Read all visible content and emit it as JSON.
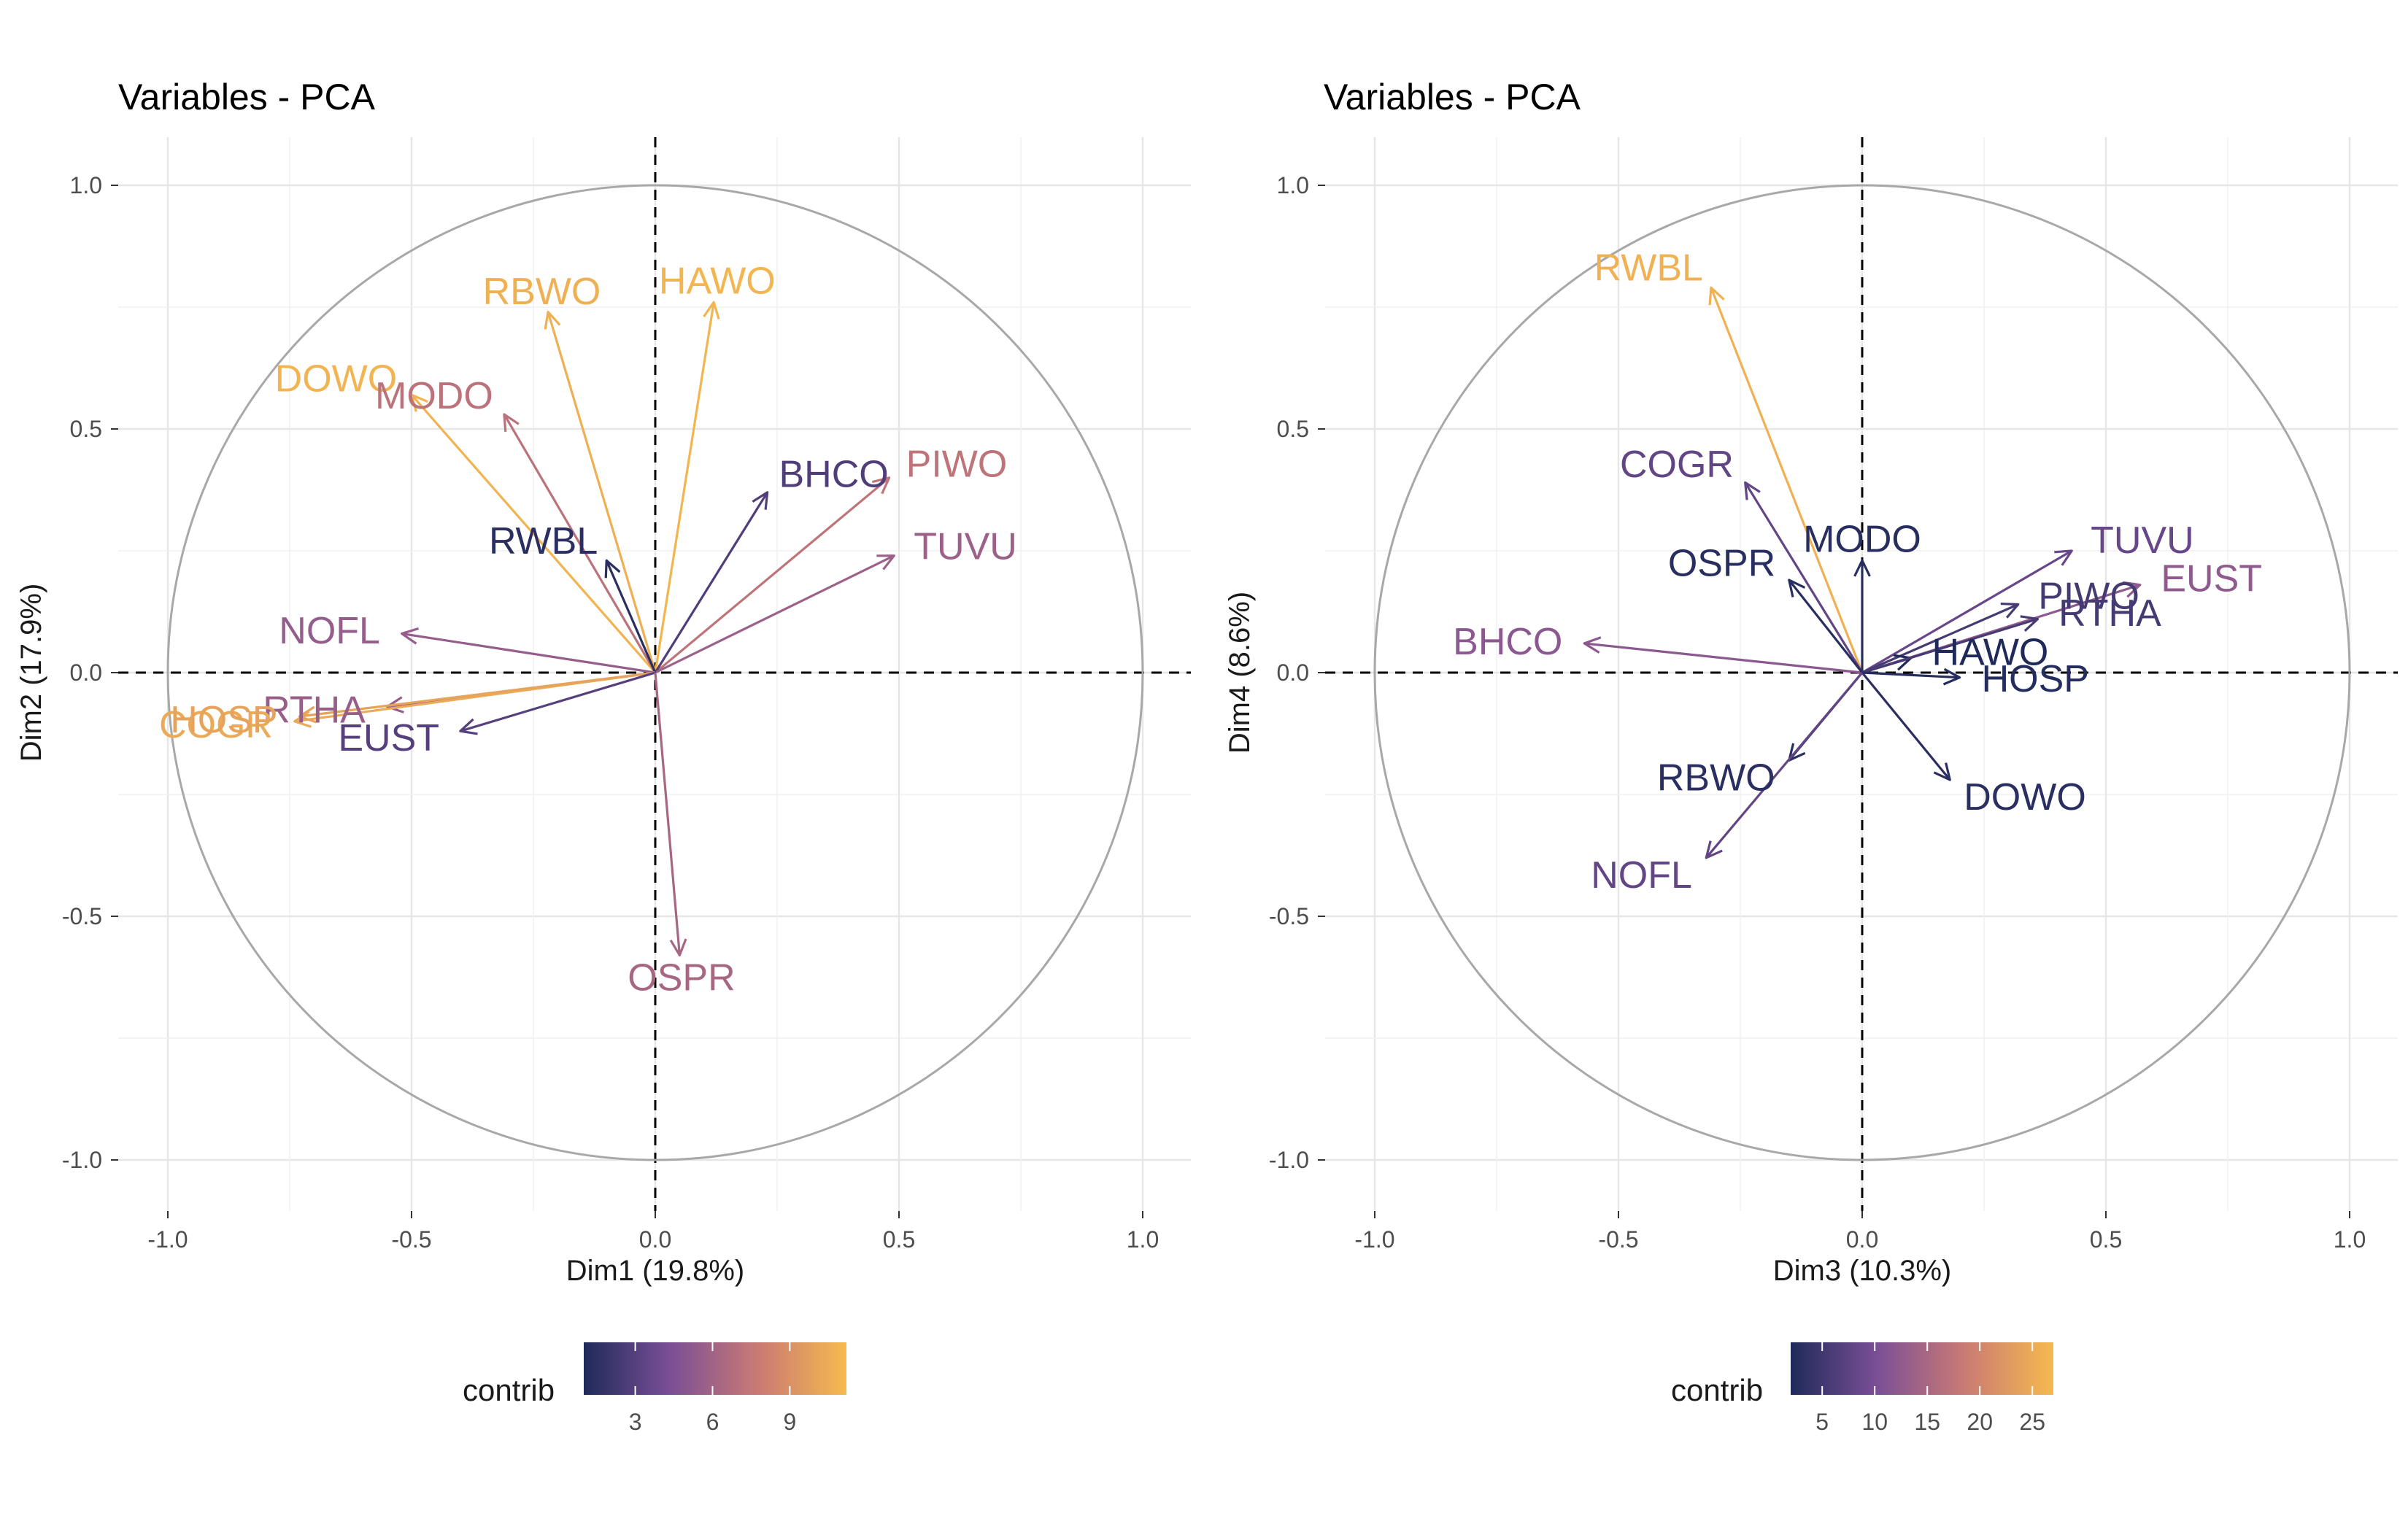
{
  "chart_data": [
    {
      "type": "scatter",
      "title": "Variables - PCA",
      "xlabel": "Dim1 (19.8%)",
      "ylabel": "Dim2 (17.9%)",
      "xlim": [
        -1.0,
        1.0
      ],
      "ylim": [
        -1.0,
        1.0
      ],
      "x_ticks": [
        "-1.0",
        "-0.5",
        "0.0",
        "0.5",
        "1.0"
      ],
      "y_ticks": [
        "1.0",
        "0.5",
        "0.0",
        "-0.5",
        "-1.0"
      ],
      "grid": true,
      "correlation_circle": true,
      "legend": {
        "title": "contrib",
        "placement": "bottom",
        "range": [
          1.0,
          11.2
        ],
        "ticks": [
          3,
          6,
          9
        ],
        "tick_labels": [
          "3",
          "6",
          "9"
        ]
      },
      "points": [
        {
          "label": "HAWO",
          "x": 0.12,
          "y": 0.76,
          "contrib": 11.0
        },
        {
          "label": "RBWO",
          "x": -0.22,
          "y": 0.74,
          "contrib": 10.7
        },
        {
          "label": "DOWO",
          "x": -0.5,
          "y": 0.57,
          "contrib": 10.9
        },
        {
          "label": "MODO",
          "x": -0.31,
          "y": 0.53,
          "contrib": 7.2
        },
        {
          "label": "PIWO",
          "x": 0.48,
          "y": 0.4,
          "contrib": 7.3
        },
        {
          "label": "BHCO",
          "x": 0.23,
          "y": 0.37,
          "contrib": 2.8
        },
        {
          "label": "TUVU",
          "x": 0.49,
          "y": 0.24,
          "contrib": 5.8
        },
        {
          "label": "RWBL",
          "x": -0.1,
          "y": 0.23,
          "contrib": 1.4
        },
        {
          "label": "NOFL",
          "x": -0.52,
          "y": 0.08,
          "contrib": 5.5
        },
        {
          "label": "RTHA",
          "x": -0.55,
          "y": -0.07,
          "contrib": 5.6
        },
        {
          "label": "COGR",
          "x": -0.74,
          "y": -0.1,
          "contrib": 10.4
        },
        {
          "label": "HOSP",
          "x": -0.73,
          "y": -0.09,
          "contrib": 10.0
        },
        {
          "label": "EUST",
          "x": -0.4,
          "y": -0.12,
          "contrib": 3.0
        },
        {
          "label": "OSPR",
          "x": 0.05,
          "y": -0.58,
          "contrib": 6.3
        }
      ]
    },
    {
      "type": "scatter",
      "title": "Variables - PCA",
      "xlabel": "Dim3 (10.3%)",
      "ylabel": "Dim4 (8.6%)",
      "xlim": [
        -1.0,
        1.0
      ],
      "ylim": [
        -1.0,
        1.0
      ],
      "x_ticks": [
        "-1.0",
        "-0.5",
        "0.0",
        "0.5",
        "1.0"
      ],
      "y_ticks": [
        "1.0",
        "0.5",
        "0.0",
        "-0.5",
        "-1.0"
      ],
      "grid": true,
      "correlation_circle": true,
      "legend": {
        "title": "contrib",
        "placement": "bottom",
        "range": [
          2.0,
          27.0
        ],
        "ticks": [
          5,
          10,
          15,
          20,
          25
        ],
        "tick_labels": [
          "5",
          "10",
          "15",
          "20",
          "25"
        ]
      },
      "points": [
        {
          "label": "RWBL",
          "x": -0.31,
          "y": 0.79,
          "contrib": 26.0
        },
        {
          "label": "COGR",
          "x": -0.24,
          "y": 0.39,
          "contrib": 8.0
        },
        {
          "label": "MODO",
          "x": 0.0,
          "y": 0.23,
          "contrib": 2.8
        },
        {
          "label": "TUVU",
          "x": 0.43,
          "y": 0.25,
          "contrib": 8.5
        },
        {
          "label": "PIWO",
          "x": 0.32,
          "y": 0.14,
          "contrib": 5.5
        },
        {
          "label": "EUST",
          "x": 0.57,
          "y": 0.18,
          "contrib": 12.5
        },
        {
          "label": "BHCO",
          "x": -0.57,
          "y": 0.06,
          "contrib": 12.0
        },
        {
          "label": "OSPR",
          "x": -0.15,
          "y": 0.19,
          "contrib": 2.8
        },
        {
          "label": "HAWO",
          "x": 0.1,
          "y": 0.03,
          "contrib": 2.0
        },
        {
          "label": "RTHA",
          "x": 0.36,
          "y": 0.11,
          "contrib": 5.5
        },
        {
          "label": "HOSP",
          "x": 0.2,
          "y": -0.01,
          "contrib": 2.5
        },
        {
          "label": "RBWO",
          "x": -0.15,
          "y": -0.18,
          "contrib": 3.0
        },
        {
          "label": "DOWO",
          "x": 0.18,
          "y": -0.22,
          "contrib": 3.0
        },
        {
          "label": "NOFL",
          "x": -0.32,
          "y": -0.38,
          "contrib": 8.0
        }
      ]
    }
  ],
  "colorscale": [
    "#1f2a5a",
    "#7b4f96",
    "#c97a74",
    "#f6b94e"
  ]
}
